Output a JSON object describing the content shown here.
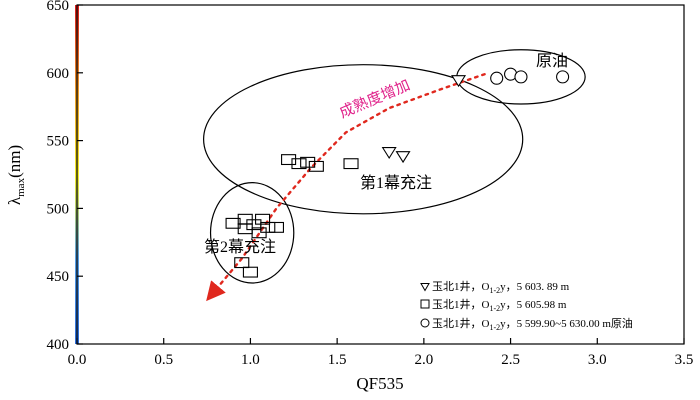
{
  "chart_data": {
    "type": "scatter",
    "xlabel": "QF535",
    "ylabel": "λ max(nm)",
    "ylabel_main": "λ",
    "ylabel_sub": "max",
    "ylabel_unit": "(nm)",
    "xlim": [
      0,
      3.5
    ],
    "ylim": [
      400,
      650
    ],
    "x_ticks": [
      "0.0",
      "0.5",
      "1.0",
      "1.5",
      "2.0",
      "2.5",
      "3.0",
      "3.5"
    ],
    "y_ticks": [
      "400",
      "450",
      "500",
      "550",
      "600",
      "650"
    ],
    "color_scale": [
      "#2b6cd8",
      "#56a0e6",
      "#f4ee28",
      "#ec9a2a",
      "#d81e1e"
    ],
    "series": [
      {
        "name": "玉北1井，O 1-2 y，5 603. 89 m",
        "marker": "triangle-down",
        "points": [
          [
            1.8,
            541
          ],
          [
            1.88,
            538
          ],
          [
            2.2,
            594
          ]
        ]
      },
      {
        "name": "玉北1井，O 1-2 y，5 605.98 m",
        "marker": "square",
        "points": [
          [
            0.9,
            489
          ],
          [
            0.97,
            492
          ],
          [
            1.02,
            488
          ],
          [
            1.07,
            492
          ],
          [
            0.97,
            485
          ],
          [
            1.05,
            482
          ],
          [
            1.1,
            486
          ],
          [
            1.15,
            486
          ],
          [
            0.95,
            460
          ],
          [
            1.0,
            453
          ],
          [
            1.22,
            536
          ],
          [
            1.28,
            533
          ],
          [
            1.33,
            534
          ],
          [
            1.38,
            531
          ],
          [
            1.58,
            533
          ]
        ]
      },
      {
        "name": "玉北1井，O 1-2 y，5 599.90~5 630.00 m原油",
        "marker": "circle",
        "points": [
          [
            2.42,
            596
          ],
          [
            2.5,
            599
          ],
          [
            2.56,
            597
          ],
          [
            2.8,
            597
          ]
        ]
      }
    ],
    "annotations": {
      "group_oil": "原油",
      "group_fill1": "第1幕充注",
      "group_fill2": "第2幕充注",
      "trend": "成熟度增加"
    },
    "legend_entries": [
      {
        "prefix": "玉北1井，O",
        "sub": "1-2",
        "suffix": "y，5 603. 89 m"
      },
      {
        "prefix": "玉北1井，O",
        "sub": "1-2",
        "suffix": "y，5 605.98 m"
      },
      {
        "prefix": "玉北1井，O",
        "sub": "1-2",
        "suffix": "y，5 599.90~5 630.00 m原油"
      }
    ],
    "legend_position": "bottom-right",
    "grid": false
  }
}
